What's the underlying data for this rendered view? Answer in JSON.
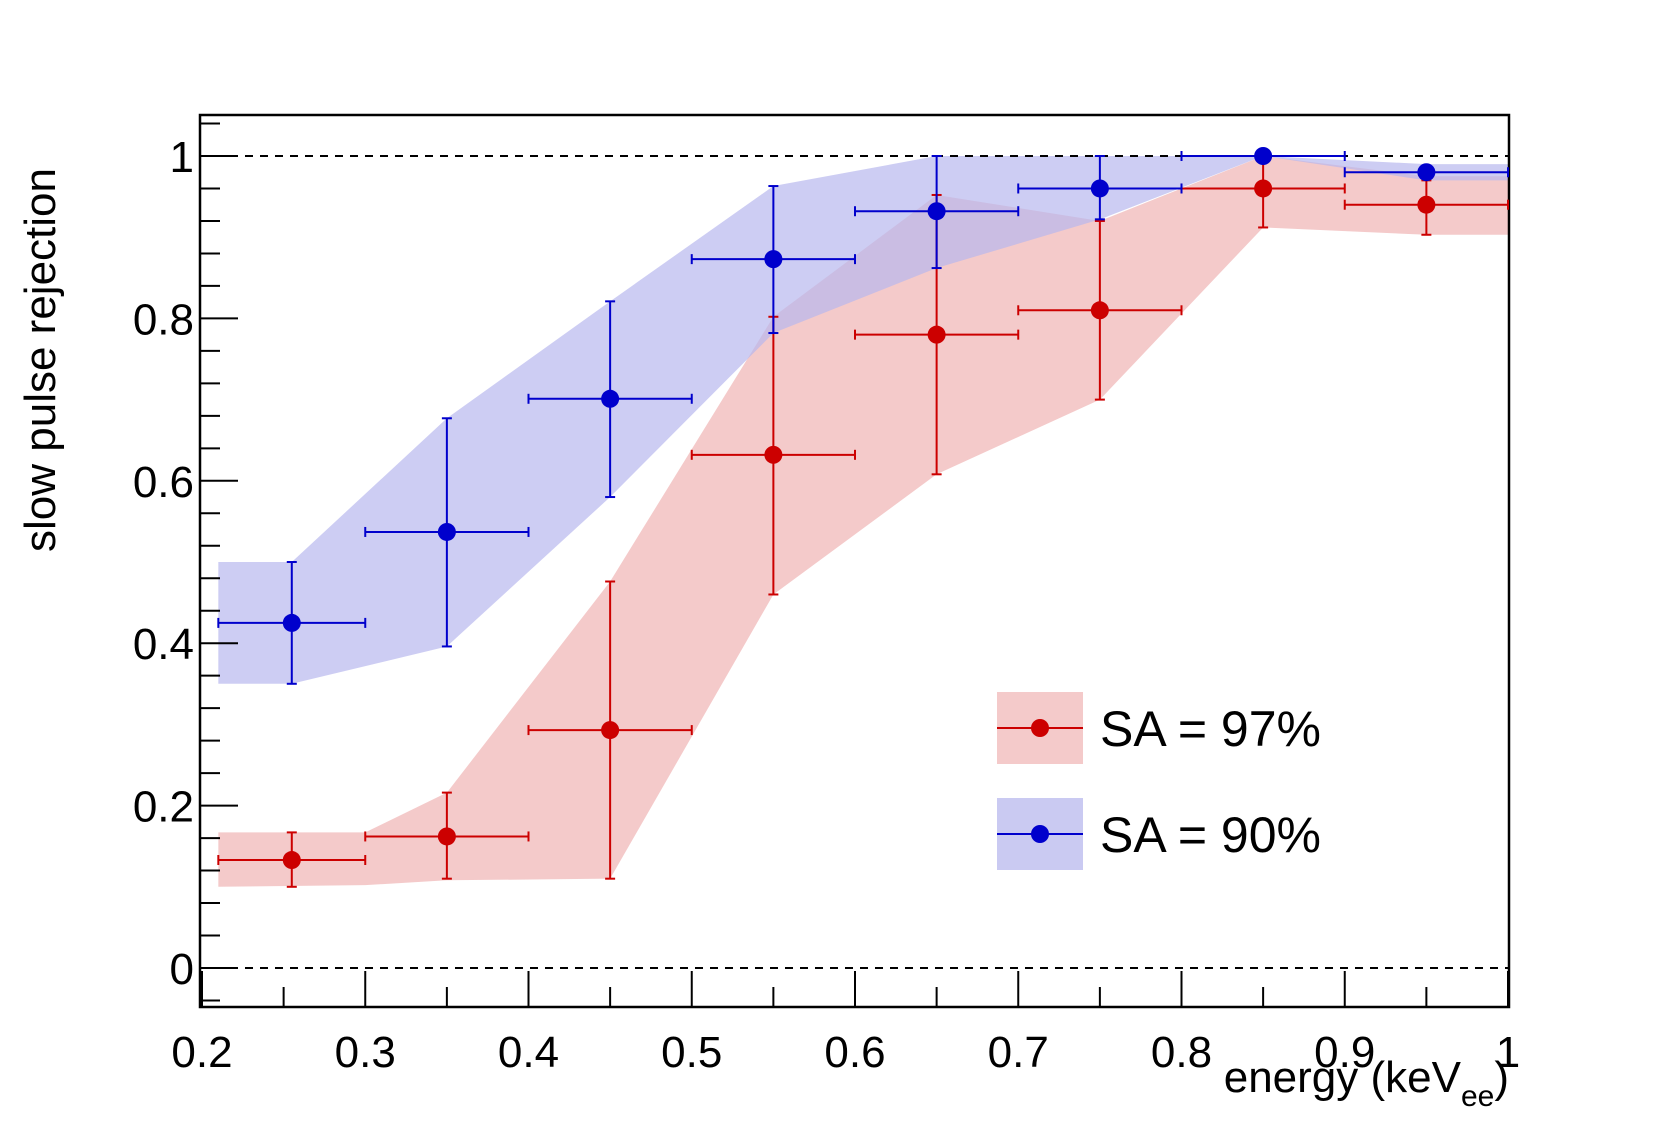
{
  "chart_data": {
    "type": "scatter",
    "title": "",
    "xlabel": "energy (keV",
    "xlabel_subscript": "ee",
    "xlabel_close": ")",
    "ylabel": "slow pulse rejection",
    "xlim": [
      0.2,
      1.0
    ],
    "ylim": [
      -0.045,
      1.05
    ],
    "x_ticks": [
      0.2,
      0.3,
      0.4,
      0.5,
      0.6,
      0.7,
      0.8,
      0.9,
      1.0
    ],
    "x_tick_labels": [
      "0.2",
      "0.3",
      "0.4",
      "0.5",
      "0.6",
      "0.7",
      "0.8",
      "0.9",
      "1"
    ],
    "y_ticks": [
      0,
      0.2,
      0.4,
      0.6,
      0.8,
      1.0
    ],
    "y_tick_labels": [
      "0",
      "0.2",
      "0.4",
      "0.6",
      "0.8",
      "1"
    ],
    "reference_lines": [
      0,
      1
    ],
    "series": [
      {
        "name": "SA = 97%",
        "color": "#cc0000",
        "band_color": "#f0b8b8",
        "x": [
          0.255,
          0.35,
          0.45,
          0.55,
          0.65,
          0.75,
          0.85,
          0.95
        ],
        "x_low": [
          0.21,
          0.3,
          0.4,
          0.5,
          0.6,
          0.7,
          0.8,
          0.9
        ],
        "x_high": [
          0.3,
          0.4,
          0.5,
          0.6,
          0.7,
          0.8,
          0.9,
          1.0
        ],
        "y": [
          0.133,
          0.162,
          0.293,
          0.632,
          0.78,
          0.81,
          0.96,
          0.94
        ],
        "y_err_low": [
          0.1,
          0.11,
          0.11,
          0.46,
          0.608,
          0.7,
          0.912,
          0.903
        ],
        "y_err_high": [
          0.167,
          0.216,
          0.476,
          0.802,
          0.952,
          0.92,
          1.0,
          0.97
        ],
        "band_x": [
          0.21,
          0.3,
          0.35,
          0.45,
          0.55,
          0.65,
          0.75,
          0.85,
          0.95,
          1.0
        ],
        "band_low": [
          0.1,
          0.102,
          0.108,
          0.11,
          0.46,
          0.608,
          0.7,
          0.912,
          0.903,
          0.903
        ],
        "band_high": [
          0.167,
          0.167,
          0.216,
          0.476,
          0.802,
          0.952,
          0.92,
          1.0,
          0.975,
          0.975
        ]
      },
      {
        "name": "SA = 90%",
        "color": "#0000cc",
        "band_color": "#b8b8ee",
        "x": [
          0.255,
          0.35,
          0.45,
          0.55,
          0.65,
          0.75,
          0.85,
          0.95
        ],
        "x_low": [
          0.21,
          0.3,
          0.4,
          0.5,
          0.6,
          0.7,
          0.8,
          0.9
        ],
        "x_high": [
          0.3,
          0.4,
          0.5,
          0.6,
          0.7,
          0.8,
          0.9,
          1.0
        ],
        "y": [
          0.425,
          0.537,
          0.701,
          0.873,
          0.932,
          0.96,
          1.0,
          0.98
        ],
        "y_err_low": [
          0.35,
          0.396,
          0.58,
          0.782,
          0.862,
          0.922,
          1.0,
          0.98
        ],
        "y_err_high": [
          0.5,
          0.677,
          0.821,
          0.963,
          1.0,
          1.0,
          1.0,
          0.98
        ],
        "band_x": [
          0.21,
          0.255,
          0.35,
          0.45,
          0.55,
          0.65,
          0.75,
          0.85,
          0.95,
          1.0
        ],
        "band_low": [
          0.35,
          0.35,
          0.396,
          0.58,
          0.782,
          0.862,
          0.922,
          1.0,
          0.97,
          0.97
        ],
        "band_high": [
          0.5,
          0.5,
          0.677,
          0.821,
          0.963,
          1.0,
          1.0,
          1.0,
          0.99,
          0.99
        ]
      }
    ],
    "legend": {
      "position": "lower-right",
      "entries": [
        "SA = 97%",
        "SA = 90%"
      ]
    }
  }
}
